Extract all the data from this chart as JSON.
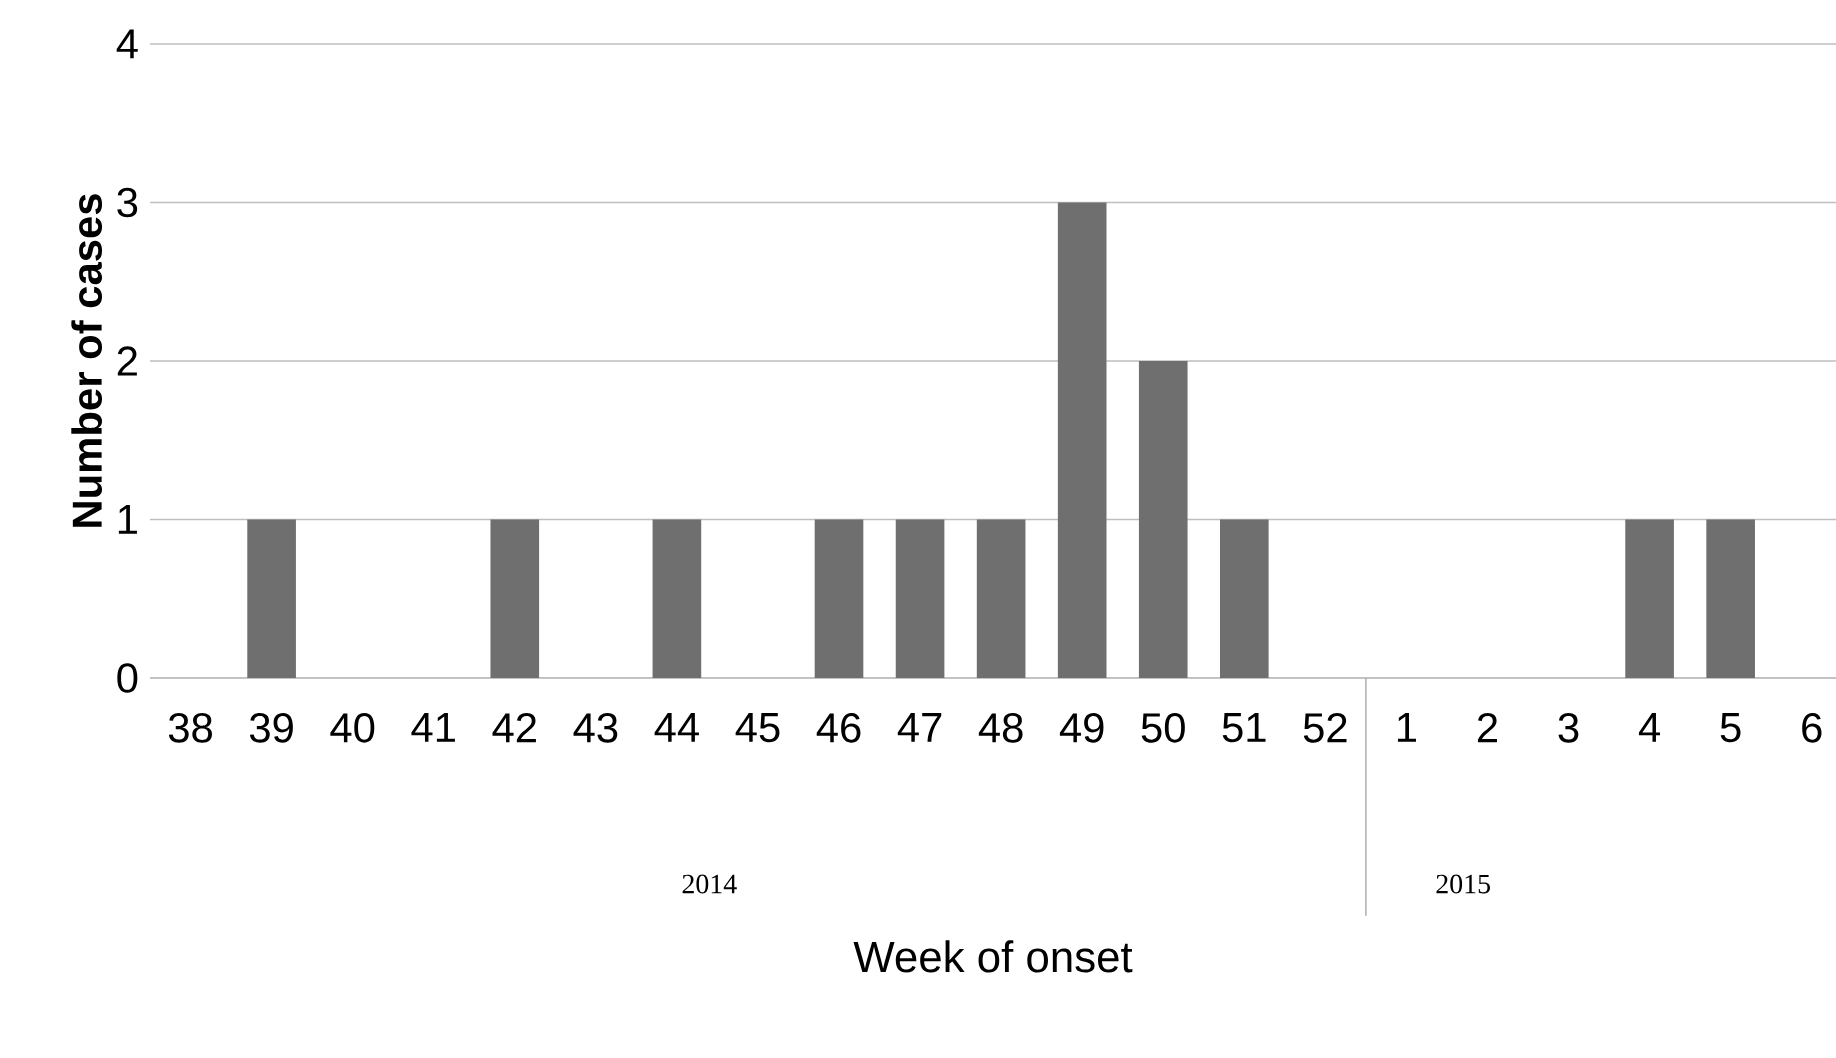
{
  "chart_data": {
    "type": "bar",
    "xlabel": "Week of onset",
    "ylabel": "Number of cases",
    "categories": [
      "38",
      "39",
      "40",
      "41",
      "42",
      "43",
      "44",
      "45",
      "46",
      "47",
      "48",
      "49",
      "50",
      "51",
      "52",
      "1",
      "2",
      "3",
      "4",
      "5",
      "6"
    ],
    "values": [
      0,
      1,
      0,
      0,
      1,
      0,
      1,
      0,
      1,
      1,
      1,
      3,
      2,
      1,
      0,
      0,
      0,
      0,
      1,
      1,
      0
    ],
    "color": "#6f6f6f",
    "ylim": [
      0,
      4
    ],
    "yticks": [
      0,
      1,
      2,
      3,
      4
    ],
    "grid": "y",
    "annotations": [
      "2014",
      "2015"
    ]
  }
}
